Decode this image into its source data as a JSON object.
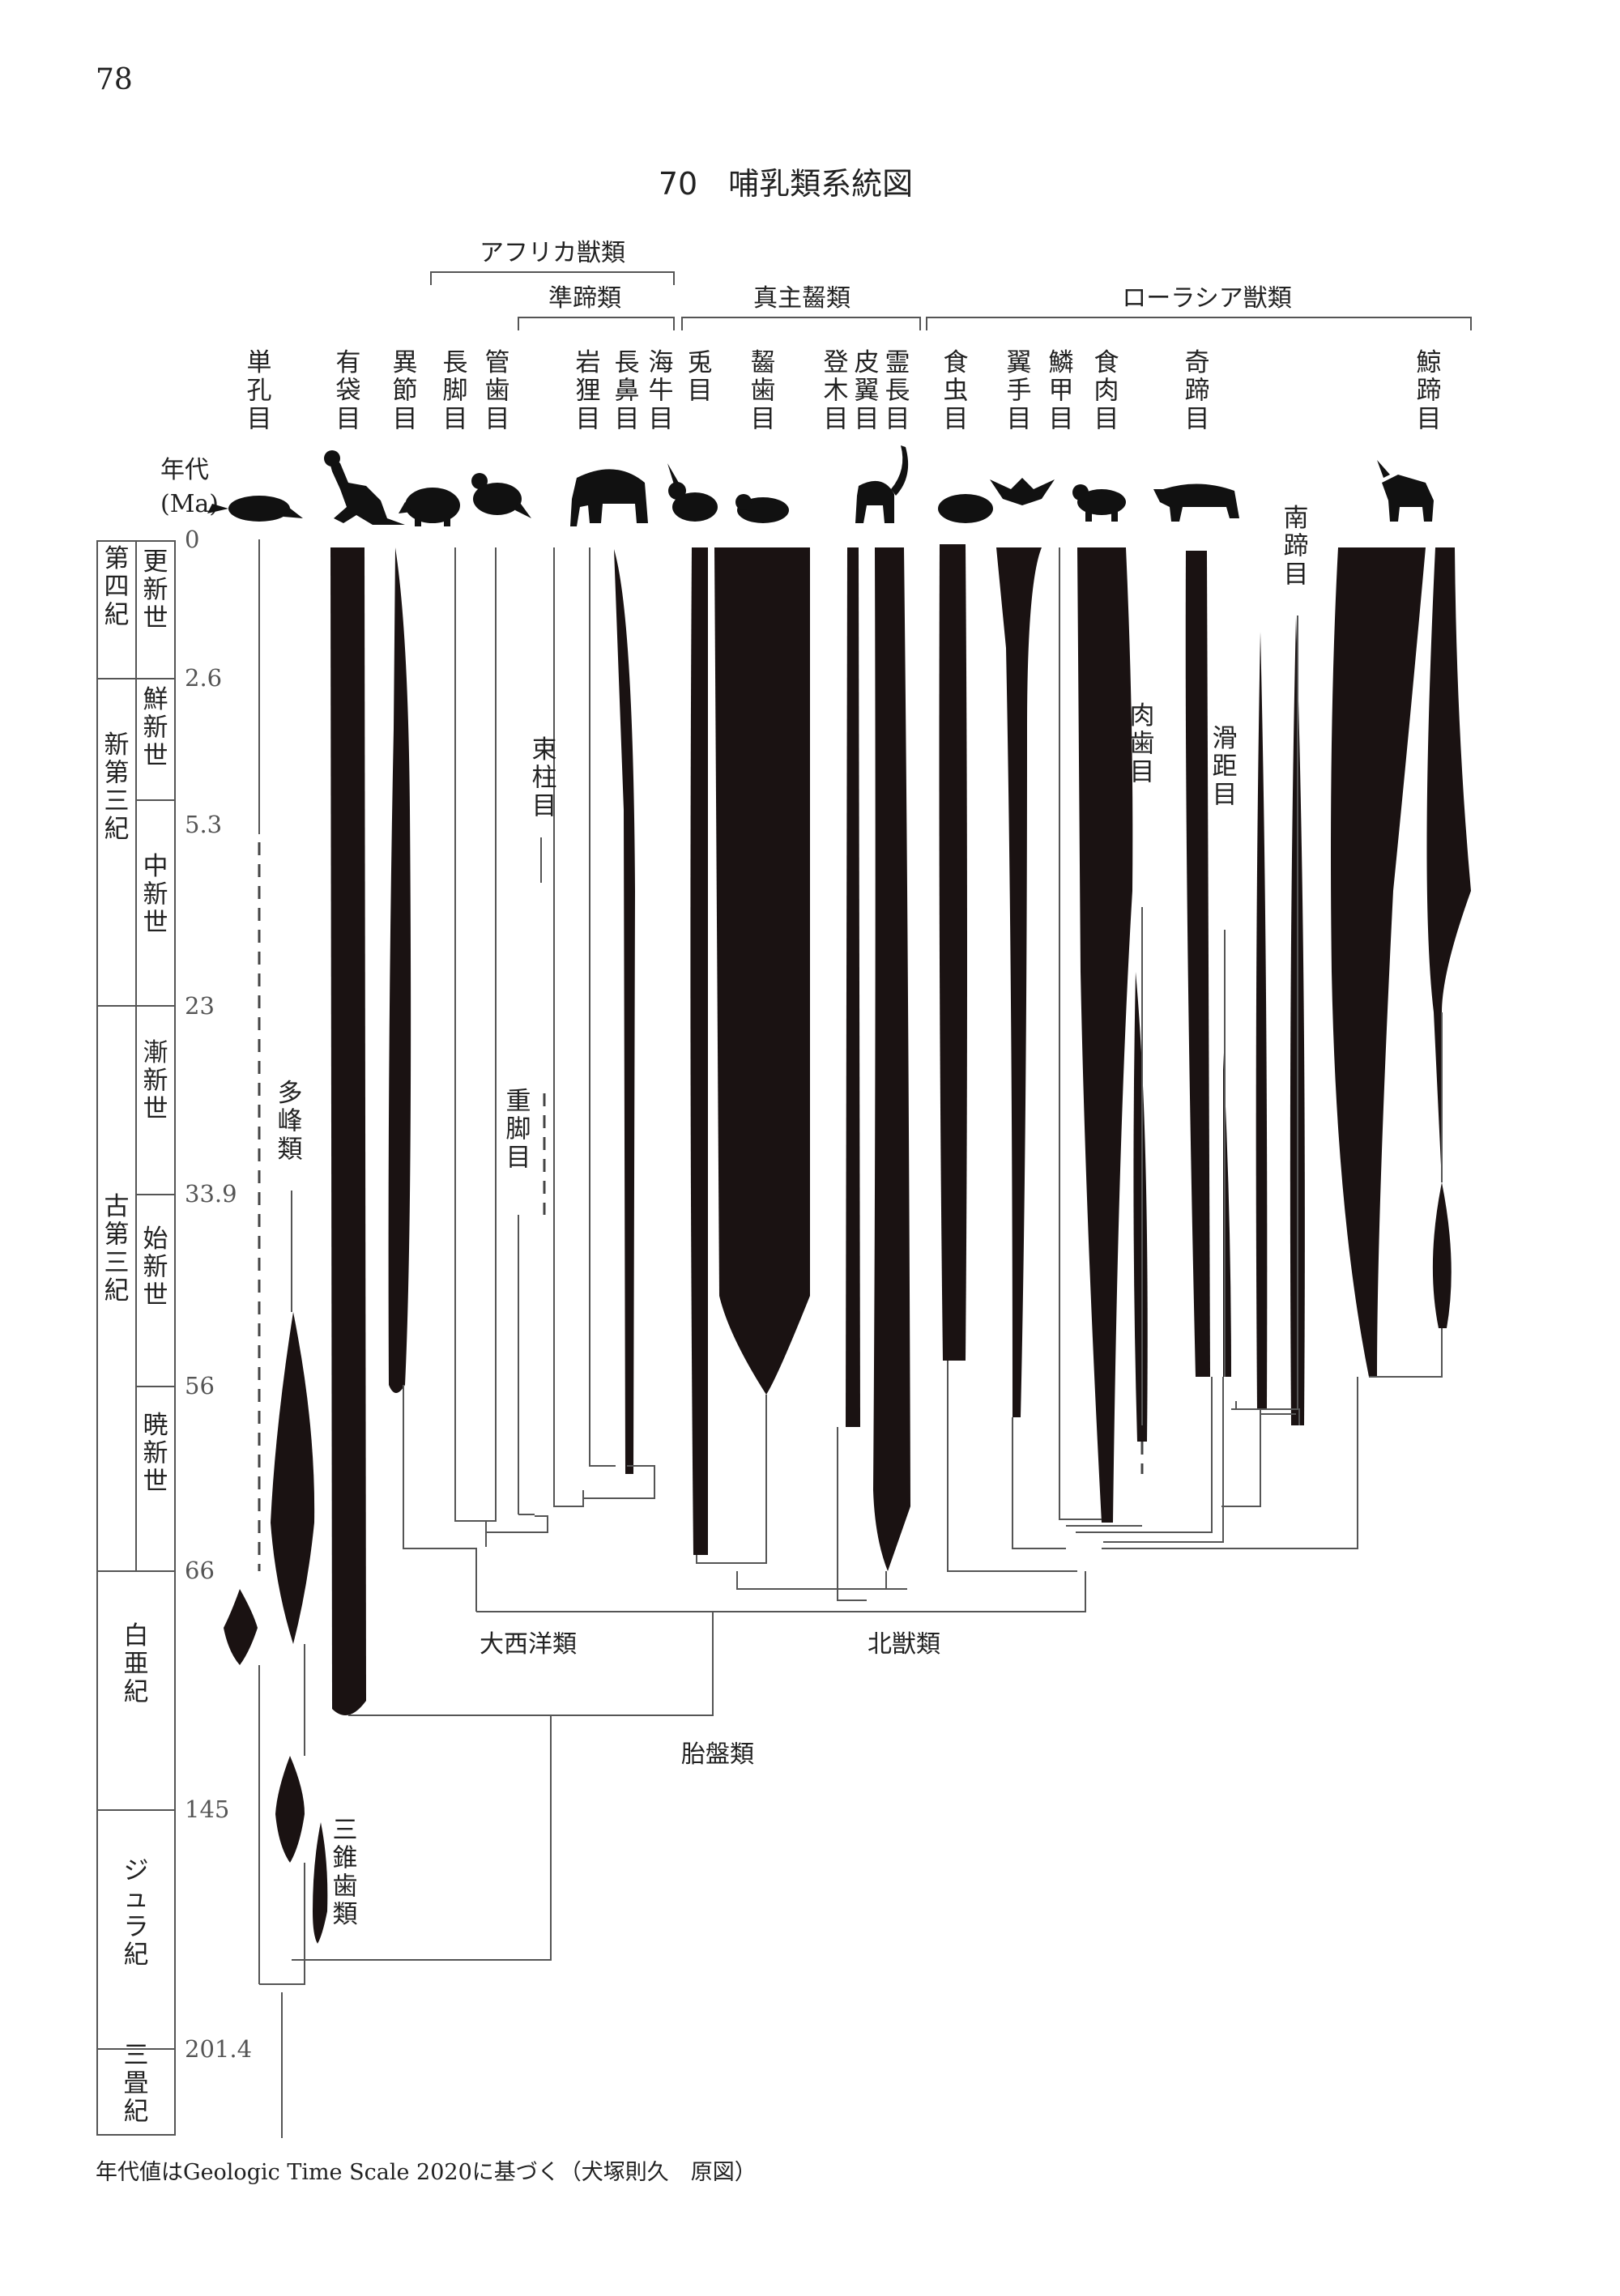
{
  "page_number": "78",
  "title": "70　哺乳類系統図",
  "footer": "年代値はGeologic Time Scale 2020に基づく（犬塚則久　原図）",
  "axis": {
    "label_line1": "年代",
    "label_line2": "(Ma)",
    "ticks": [
      "0",
      "2.6",
      "5.3",
      "23",
      "33.9",
      "56",
      "66",
      "145",
      "201.4"
    ]
  },
  "periods": [
    {
      "name": "第四紀",
      "from": "0",
      "to": "2.6"
    },
    {
      "name": "新第三紀",
      "from": "2.6",
      "to": "23"
    },
    {
      "name": "古第三紀",
      "from": "23",
      "to": "66"
    },
    {
      "name": "白亜紀",
      "from": "66",
      "to": "145"
    },
    {
      "name": "ジュラ紀",
      "from": "145",
      "to": "201.4"
    },
    {
      "name": "三畳紀",
      "from": "201.4",
      "to": ""
    }
  ],
  "epochs": [
    {
      "name": "更新世"
    },
    {
      "name": "鮮新世"
    },
    {
      "name": "中新世"
    },
    {
      "name": "漸新世"
    },
    {
      "name": "始新世"
    },
    {
      "name": "暁新世"
    }
  ],
  "groups": [
    {
      "name": "アフリカ獣類"
    },
    {
      "name": "準蹄類"
    },
    {
      "name": "真主齧類"
    },
    {
      "name": "ローラシア獣類"
    }
  ],
  "orders": [
    {
      "name": "単孔目"
    },
    {
      "name": "有袋目"
    },
    {
      "name": "異節目"
    },
    {
      "name": "長脚目"
    },
    {
      "name": "管歯目"
    },
    {
      "name": "岩狸目"
    },
    {
      "name": "長鼻目"
    },
    {
      "name": "海牛目"
    },
    {
      "name": "兎目"
    },
    {
      "name": "齧歯目"
    },
    {
      "name": "登木目"
    },
    {
      "name": "皮翼目"
    },
    {
      "name": "霊長目"
    },
    {
      "name": "食虫目"
    },
    {
      "name": "翼手目"
    },
    {
      "name": "鱗甲目"
    },
    {
      "name": "食肉目"
    },
    {
      "name": "奇蹄目"
    },
    {
      "name": "鯨蹄目"
    }
  ],
  "extinct_groups": [
    {
      "name": "多峰類"
    },
    {
      "name": "三錐歯類"
    },
    {
      "name": "束柱目"
    },
    {
      "name": "重脚目"
    },
    {
      "name": "肉歯目"
    },
    {
      "name": "滑距目"
    },
    {
      "name": "南蹄目"
    }
  ],
  "clades": [
    {
      "name": "大西洋類"
    },
    {
      "name": "北獣類"
    },
    {
      "name": "胎盤類"
    }
  ],
  "silhouette_icons": [
    "platypus-icon",
    "kangaroo-icon",
    "armadillo-icon",
    "elephant-shrew-icon",
    "elephant-icon",
    "rabbit-icon",
    "rodent-icon",
    "lemur-icon",
    "hedgehog-icon",
    "bat-icon",
    "carnivore-icon",
    "rhino-icon",
    "goat-icon"
  ]
}
